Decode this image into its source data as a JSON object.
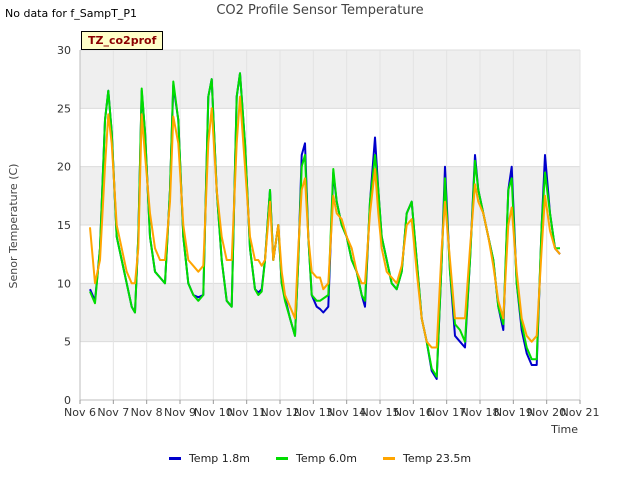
{
  "header": {
    "no_data_text": "No data for f_SampT_P1",
    "tag_label": "TZ_co2prof"
  },
  "chart_data": {
    "type": "line",
    "title": "CO2 Profile Sensor Temperature",
    "xlabel": "Time",
    "ylabel": "Senor Temperature (C)",
    "ylim": [
      0,
      30
    ],
    "yticks": [
      "0",
      "5",
      "10",
      "15",
      "20",
      "25",
      "30"
    ],
    "xlim": [
      6,
      21
    ],
    "xticks": [
      "Nov 6",
      "Nov 7",
      "Nov 8",
      "Nov 9",
      "Nov 10",
      "Nov 11",
      "Nov 12",
      "Nov 13",
      "Nov 14",
      "Nov 15",
      "Nov 16",
      "Nov 17",
      "Nov 18",
      "Nov 19",
      "Nov 20",
      "Nov 21"
    ],
    "grid": true,
    "legend_position": "bottom",
    "series": [
      {
        "name": "Temp 1.8m",
        "color": "#0000cc",
        "x": [
          6.3,
          6.45,
          6.6,
          6.75,
          6.85,
          6.95,
          7.1,
          7.25,
          7.4,
          7.55,
          7.65,
          7.75,
          7.85,
          7.95,
          8.1,
          8.25,
          8.4,
          8.55,
          8.7,
          8.8,
          8.95,
          9.1,
          9.25,
          9.4,
          9.55,
          9.7,
          9.85,
          9.95,
          10.1,
          10.25,
          10.4,
          10.55,
          10.7,
          10.8,
          10.95,
          11.1,
          11.25,
          11.35,
          11.45,
          11.55,
          11.7,
          11.8,
          11.95,
          12.05,
          12.15,
          12.3,
          12.45,
          12.55,
          12.65,
          12.75,
          12.85,
          12.95,
          13.1,
          13.2,
          13.3,
          13.45,
          13.6,
          13.7,
          13.85,
          14.0,
          14.15,
          14.3,
          14.45,
          14.55,
          14.7,
          14.85,
          14.95,
          15.05,
          15.2,
          15.35,
          15.5,
          15.65,
          15.8,
          15.95,
          16.1,
          16.25,
          16.4,
          16.55,
          16.7,
          16.85,
          16.95,
          17.1,
          17.25,
          17.4,
          17.55,
          17.7,
          17.85,
          17.95,
          18.1,
          18.25,
          18.4,
          18.55,
          18.7,
          18.85,
          18.95,
          19.1,
          19.25,
          19.4,
          19.55,
          19.7,
          19.85,
          19.95,
          20.1,
          20.25,
          20.4
        ],
        "y": [
          9.5,
          8.5,
          13,
          24,
          26.5,
          23,
          14,
          12,
          10,
          8,
          7.5,
          14,
          26.5,
          23,
          14,
          11,
          10.5,
          10,
          18,
          27,
          24,
          14,
          10,
          9,
          8.8,
          9,
          26,
          27.5,
          18,
          12,
          8.5,
          8,
          26,
          28,
          22,
          13,
          9.5,
          9.2,
          9.5,
          12,
          18,
          12,
          15,
          10,
          8.8,
          7,
          5.5,
          12,
          21,
          22,
          14,
          9,
          8,
          7.8,
          7.5,
          8,
          19.5,
          17,
          15,
          14,
          12,
          11,
          9,
          8,
          17,
          22.5,
          18,
          14,
          12,
          10,
          9.5,
          11,
          16,
          17,
          12,
          7,
          5,
          2.5,
          1.8,
          12,
          20,
          11,
          5.5,
          5,
          4.5,
          12,
          21,
          18,
          16,
          14,
          12,
          8,
          6,
          18,
          20,
          10,
          6,
          4,
          3,
          3,
          15,
          21,
          16,
          13,
          12.5
        ]
      },
      {
        "name": "Temp 6.0m",
        "color": "#00dd00",
        "x": [
          6.3,
          6.45,
          6.6,
          6.75,
          6.85,
          6.95,
          7.1,
          7.25,
          7.4,
          7.55,
          7.65,
          7.75,
          7.85,
          7.95,
          8.1,
          8.25,
          8.4,
          8.55,
          8.7,
          8.8,
          8.95,
          9.1,
          9.25,
          9.4,
          9.55,
          9.7,
          9.85,
          9.95,
          10.1,
          10.25,
          10.4,
          10.55,
          10.7,
          10.8,
          10.95,
          11.1,
          11.25,
          11.35,
          11.45,
          11.55,
          11.7,
          11.8,
          11.95,
          12.05,
          12.15,
          12.3,
          12.45,
          12.55,
          12.65,
          12.75,
          12.85,
          12.95,
          13.1,
          13.2,
          13.3,
          13.45,
          13.6,
          13.7,
          13.85,
          14.0,
          14.15,
          14.3,
          14.45,
          14.55,
          14.7,
          14.85,
          14.95,
          15.05,
          15.2,
          15.35,
          15.5,
          15.65,
          15.8,
          15.95,
          16.1,
          16.25,
          16.4,
          16.55,
          16.7,
          16.85,
          16.95,
          17.1,
          17.25,
          17.4,
          17.55,
          17.7,
          17.85,
          17.95,
          18.1,
          18.25,
          18.4,
          18.55,
          18.7,
          18.85,
          18.95,
          19.1,
          19.25,
          19.4,
          19.55,
          19.7,
          19.85,
          19.95,
          20.1,
          20.25,
          20.4
        ],
        "y": [
          9.3,
          8.3,
          13,
          24,
          26.5,
          23,
          14,
          12,
          10,
          8,
          7.5,
          14,
          26.7,
          23,
          14,
          11,
          10.5,
          10,
          18,
          27.3,
          24,
          14,
          10,
          9,
          8.5,
          9,
          26,
          27.5,
          18,
          12,
          8.5,
          8,
          26,
          28,
          22,
          13,
          9.5,
          9,
          9.3,
          12,
          18,
          12,
          15,
          10,
          8.5,
          7,
          5.5,
          12,
          20,
          21,
          14,
          9,
          8.5,
          8.5,
          8.7,
          9,
          19.8,
          17,
          15,
          14,
          12,
          11,
          9,
          8.5,
          17,
          21,
          18,
          14,
          12,
          10,
          9.5,
          11,
          16,
          17,
          12,
          7,
          5,
          2.7,
          2,
          12,
          19,
          11,
          6.5,
          6,
          5,
          12,
          20.5,
          18,
          16,
          14,
          12,
          8,
          6.5,
          18,
          19,
          10,
          6.5,
          4.5,
          3.5,
          3.5,
          15,
          19.5,
          16,
          13,
          13
        ]
      },
      {
        "name": "Temp 23.5m",
        "color": "#ffa500",
        "x": [
          6.3,
          6.45,
          6.6,
          6.75,
          6.85,
          6.95,
          7.1,
          7.25,
          7.4,
          7.55,
          7.65,
          7.75,
          7.85,
          7.95,
          8.1,
          8.25,
          8.4,
          8.55,
          8.7,
          8.8,
          8.95,
          9.1,
          9.25,
          9.4,
          9.55,
          9.7,
          9.85,
          9.95,
          10.1,
          10.25,
          10.4,
          10.55,
          10.7,
          10.8,
          10.95,
          11.1,
          11.25,
          11.35,
          11.45,
          11.55,
          11.7,
          11.8,
          11.95,
          12.05,
          12.15,
          12.3,
          12.45,
          12.55,
          12.65,
          12.75,
          12.85,
          12.95,
          13.1,
          13.2,
          13.3,
          13.45,
          13.6,
          13.7,
          13.85,
          14.0,
          14.15,
          14.3,
          14.45,
          14.55,
          14.7,
          14.85,
          14.95,
          15.05,
          15.2,
          15.35,
          15.5,
          15.65,
          15.8,
          15.95,
          16.1,
          16.25,
          16.4,
          16.55,
          16.7,
          16.85,
          16.95,
          17.1,
          17.25,
          17.4,
          17.55,
          17.7,
          17.85,
          17.95,
          18.1,
          18.25,
          18.4,
          18.55,
          18.7,
          18.85,
          18.95,
          19.1,
          19.25,
          19.4,
          19.55,
          19.7,
          19.85,
          19.95,
          20.1,
          20.25,
          20.4
        ],
        "y": [
          14.8,
          10,
          12,
          20,
          24.5,
          22,
          15,
          13,
          11,
          10,
          10,
          13,
          24.5,
          21,
          16,
          13,
          12,
          12,
          17,
          24.3,
          22,
          15,
          12,
          11.5,
          11,
          11.5,
          22,
          25,
          18,
          14,
          12,
          12,
          22,
          26,
          20,
          14,
          12,
          12,
          11.5,
          12,
          17,
          12,
          15,
          11,
          9,
          8,
          7,
          13,
          18,
          19,
          14,
          11,
          10.5,
          10.5,
          9.5,
          10,
          17.5,
          16,
          15.5,
          14,
          13,
          11,
          10,
          10,
          16,
          19.8,
          16,
          13,
          11,
          10.5,
          10,
          11.5,
          15,
          15.5,
          11,
          7,
          5,
          4.5,
          4.5,
          13,
          17,
          12,
          7,
          7,
          7,
          13,
          18.5,
          17,
          16,
          14,
          11.5,
          8.5,
          7,
          15,
          16.5,
          11,
          7,
          5.5,
          5,
          5.5,
          13,
          17.5,
          14.5,
          13,
          12.5
        ]
      }
    ]
  }
}
